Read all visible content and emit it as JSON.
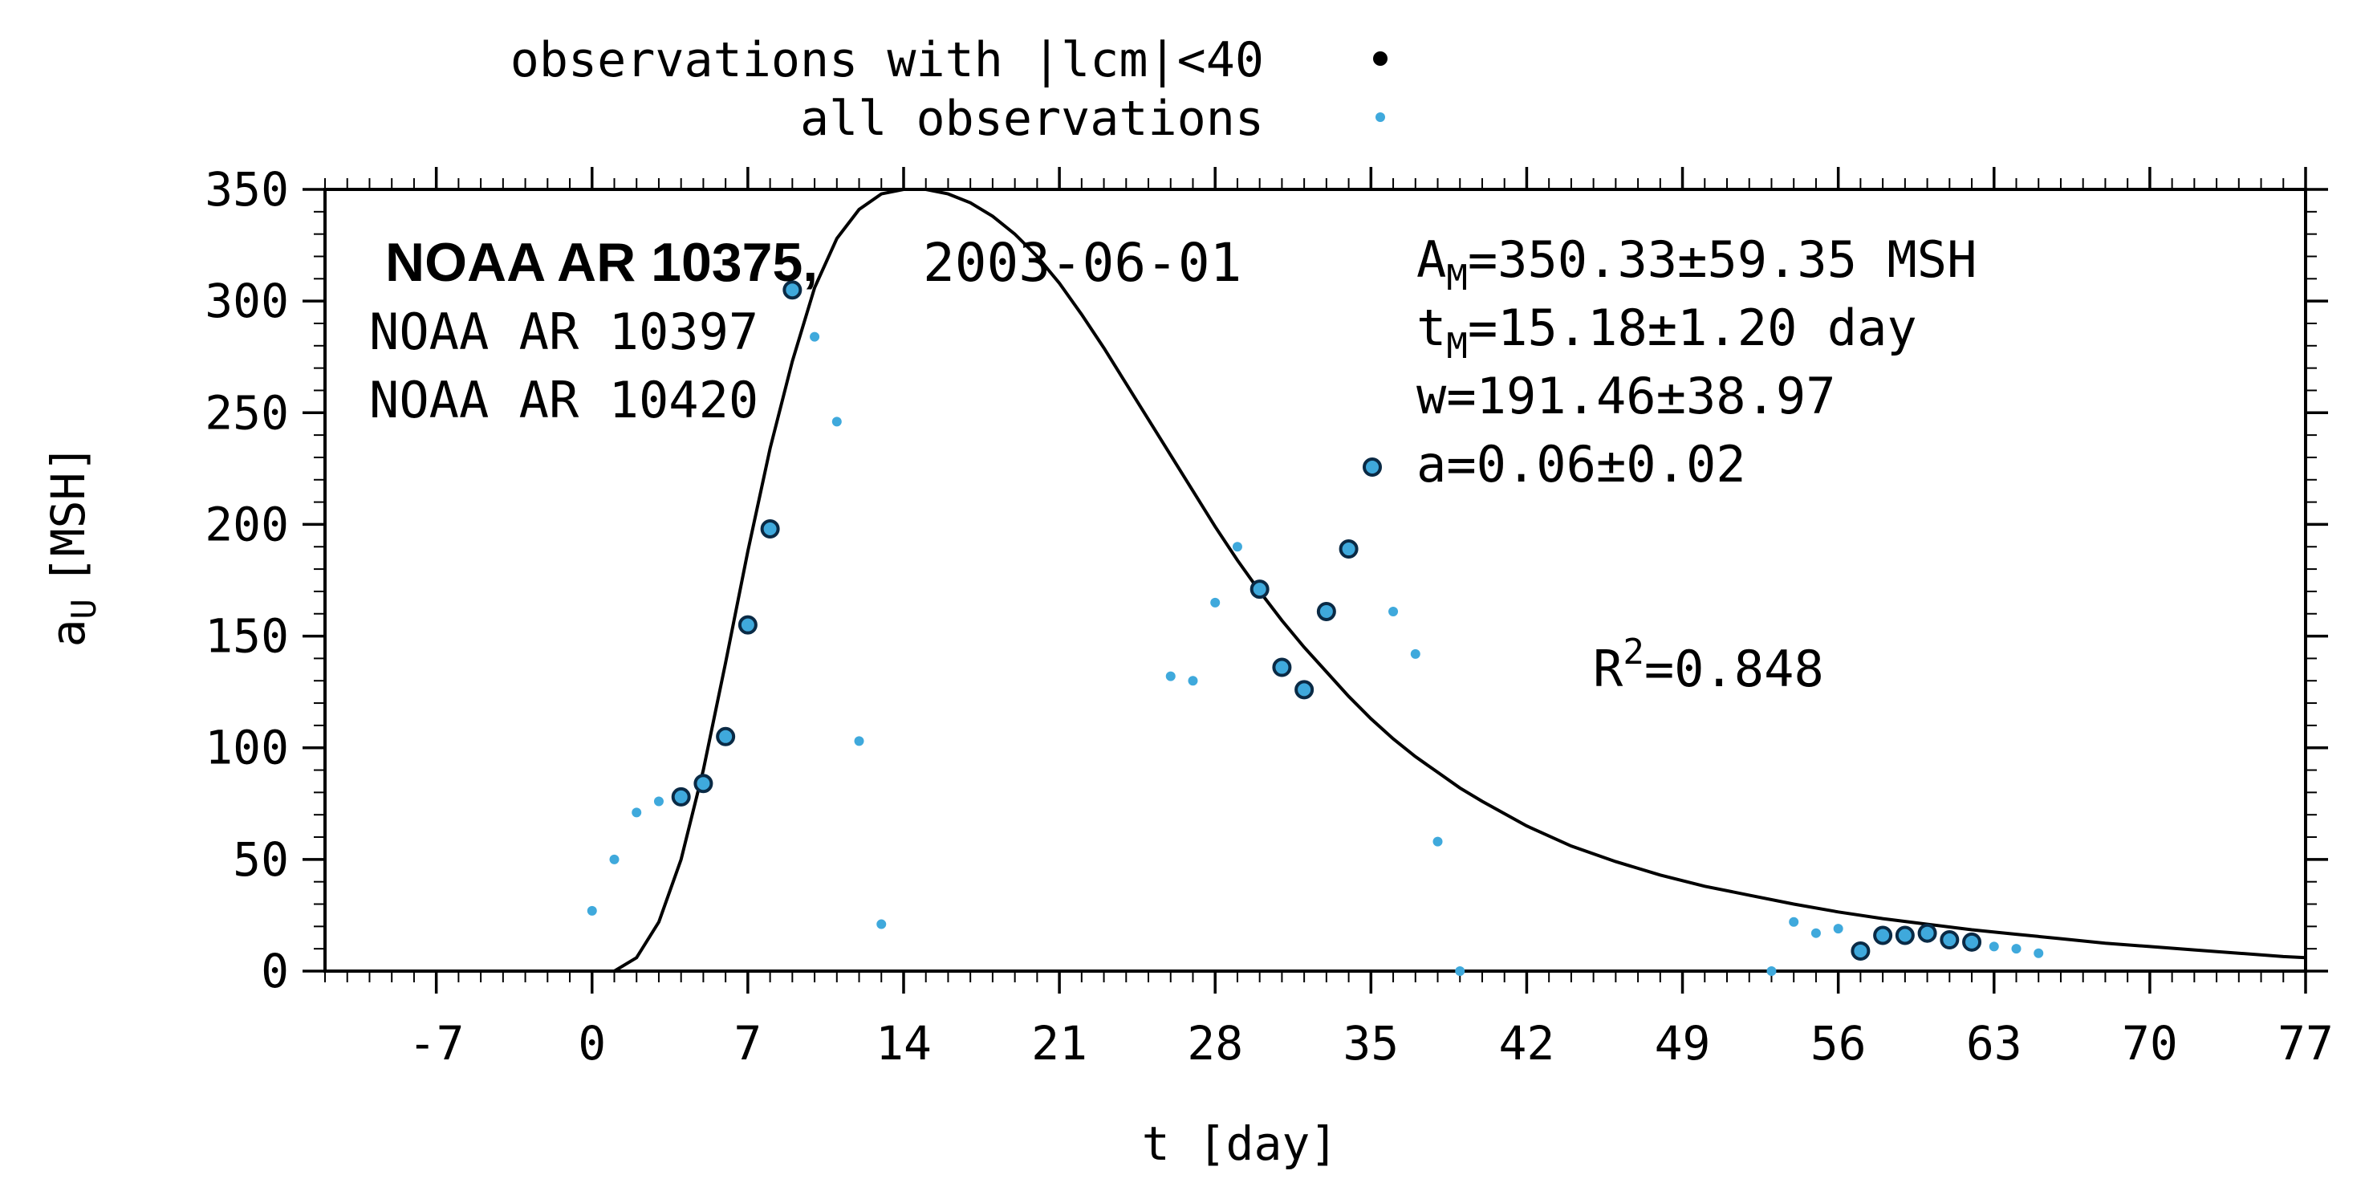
{
  "chart_data": {
    "type": "scatter",
    "xlabel": "t [day]",
    "ylabel": "a",
    "ylabel_sub": "U",
    "ylabel_unit": "[MSH]",
    "xlim": [
      -12,
      77
    ],
    "ylim": [
      0,
      350
    ],
    "xticks": [
      -7,
      0,
      7,
      14,
      21,
      28,
      35,
      42,
      49,
      56,
      63,
      70,
      77
    ],
    "yticks": [
      0,
      50,
      100,
      150,
      200,
      250,
      300,
      350
    ],
    "legend": {
      "placement": "top-center",
      "entries": [
        {
          "label": "observations with |lcm|<40",
          "marker": "filled-circle"
        },
        {
          "label": "all observations",
          "marker": "small-dot"
        }
      ]
    },
    "annotations": {
      "region_main": "NOAA AR 10375,",
      "date": "2003-06-01",
      "region_2": "NOAA AR 10397",
      "region_3": "NOAA AR 10420",
      "am_base": "A",
      "am_sub": "M",
      "am_value": "=350.33±59.35 MSH",
      "tm_base": "t",
      "tm_sub": "M",
      "tm_value": "=15.18±1.20 day",
      "w": "w=191.46±38.97",
      "a": "a=0.06±0.02",
      "r2_base": "R",
      "r2_sup": "2",
      "r2_value": "=0.848"
    },
    "series": [
      {
        "name": "observations with |lcm|<40",
        "style": "filled-circle",
        "points": [
          [
            4,
            78
          ],
          [
            5,
            84
          ],
          [
            6,
            105
          ],
          [
            7,
            155
          ],
          [
            8,
            198
          ],
          [
            9,
            305
          ],
          [
            30,
            171
          ],
          [
            31,
            136
          ],
          [
            32,
            126
          ],
          [
            33,
            161
          ],
          [
            34,
            189
          ],
          [
            57,
            9
          ],
          [
            58,
            16
          ],
          [
            59,
            16
          ],
          [
            60,
            17
          ],
          [
            61,
            14
          ],
          [
            62,
            13
          ]
        ]
      },
      {
        "name": "all observations",
        "style": "small-dot",
        "points": [
          [
            0,
            27
          ],
          [
            1,
            50
          ],
          [
            2,
            71
          ],
          [
            3,
            76
          ],
          [
            10,
            284
          ],
          [
            11,
            246
          ],
          [
            12,
            103
          ],
          [
            13,
            21
          ],
          [
            26,
            132
          ],
          [
            27,
            130
          ],
          [
            28,
            165
          ],
          [
            29,
            190
          ],
          [
            36,
            161
          ],
          [
            37,
            142
          ],
          [
            38,
            58
          ],
          [
            39,
            0
          ],
          [
            53,
            0
          ],
          [
            54,
            22
          ],
          [
            55,
            17
          ],
          [
            56,
            19
          ],
          [
            63,
            11
          ],
          [
            64,
            10
          ],
          [
            65,
            8
          ]
        ]
      }
    ],
    "fit_curve": {
      "name": "fit",
      "points": [
        [
          0,
          0
        ],
        [
          1,
          0
        ],
        [
          2,
          6
        ],
        [
          3,
          22
        ],
        [
          4,
          50
        ],
        [
          5,
          90
        ],
        [
          6,
          138
        ],
        [
          7,
          188
        ],
        [
          8,
          234
        ],
        [
          9,
          273
        ],
        [
          10,
          306
        ],
        [
          11,
          328
        ],
        [
          12,
          341
        ],
        [
          13,
          348
        ],
        [
          14,
          350
        ],
        [
          15,
          350
        ],
        [
          16,
          348
        ],
        [
          17,
          344
        ],
        [
          18,
          338
        ],
        [
          19,
          330
        ],
        [
          20,
          320
        ],
        [
          21,
          308
        ],
        [
          22,
          294
        ],
        [
          23,
          279
        ],
        [
          24,
          263
        ],
        [
          25,
          247
        ],
        [
          26,
          231
        ],
        [
          27,
          215
        ],
        [
          28,
          199
        ],
        [
          29,
          184
        ],
        [
          30,
          170
        ],
        [
          31,
          157
        ],
        [
          32,
          145
        ],
        [
          33,
          134
        ],
        [
          34,
          123
        ],
        [
          35,
          113
        ],
        [
          36,
          104
        ],
        [
          37,
          96
        ],
        [
          38,
          89
        ],
        [
          39,
          82
        ],
        [
          40,
          76
        ],
        [
          42,
          65
        ],
        [
          44,
          56
        ],
        [
          46,
          49
        ],
        [
          48,
          43
        ],
        [
          50,
          38
        ],
        [
          52,
          34
        ],
        [
          54,
          30
        ],
        [
          56,
          26.5
        ],
        [
          58,
          23.5
        ],
        [
          60,
          21
        ],
        [
          62,
          18.5
        ],
        [
          64,
          16.5
        ],
        [
          66,
          14.5
        ],
        [
          68,
          12.5
        ],
        [
          70,
          11
        ],
        [
          72,
          9.5
        ],
        [
          74,
          8
        ],
        [
          76,
          6.5
        ],
        [
          77,
          6
        ]
      ]
    },
    "colors": {
      "axis": "#000000",
      "curve": "#000000",
      "dot_fill": "#3fa9dc",
      "dot_stroke": "#0a2a45",
      "marker_black": "#000000"
    }
  }
}
